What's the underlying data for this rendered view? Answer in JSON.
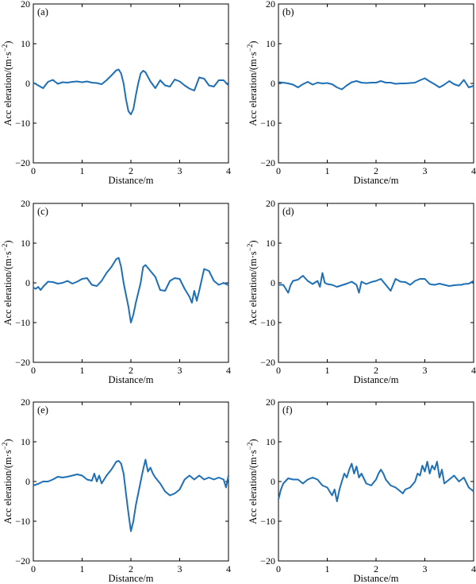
{
  "chart_data": [
    {
      "type": "line",
      "panel_label": "(a)",
      "xlabel": "Distance/m",
      "ylabel": "Acc eleration/(m·s",
      "ylabel_exp": "−2",
      "ylabel_tail": ")",
      "xlim": [
        0,
        4
      ],
      "ylim": [
        -20,
        20
      ],
      "xticks": [
        "0",
        "1",
        "2",
        "3",
        "4"
      ],
      "yticks": [
        "20",
        "10",
        "0",
        "−10",
        "−20"
      ],
      "color": "#1f6fb5",
      "x": [
        0,
        0.1,
        0.2,
        0.3,
        0.4,
        0.5,
        0.6,
        0.7,
        0.8,
        0.9,
        1.0,
        1.1,
        1.2,
        1.3,
        1.4,
        1.5,
        1.6,
        1.7,
        1.75,
        1.8,
        1.85,
        1.9,
        1.95,
        2.0,
        2.05,
        2.1,
        2.15,
        2.2,
        2.25,
        2.3,
        2.4,
        2.5,
        2.6,
        2.7,
        2.8,
        2.9,
        3.0,
        3.1,
        3.2,
        3.3,
        3.4,
        3.5,
        3.6,
        3.7,
        3.8,
        3.9,
        4.0
      ],
      "y": [
        0.2,
        -0.5,
        -1.2,
        0.4,
        0.9,
        -0.1,
        0.3,
        0.2,
        0.4,
        0.5,
        0.3,
        0.5,
        0.2,
        0.1,
        -0.2,
        0.8,
        2.0,
        3.3,
        3.5,
        2.5,
        0,
        -4,
        -7,
        -7.8,
        -6.5,
        -3,
        0,
        2.5,
        3.2,
        2.8,
        0.5,
        -1.2,
        0.8,
        -0.5,
        -0.8,
        1.0,
        0.5,
        -0.5,
        -1.3,
        -1.8,
        1.5,
        1.2,
        -0.5,
        -0.8,
        0.8,
        0.8,
        -0.5
      ]
    },
    {
      "type": "line",
      "panel_label": "(b)",
      "xlabel": "Distance/m",
      "ylabel": "Acc eleration/(m·s",
      "ylabel_exp": "−2",
      "ylabel_tail": ")",
      "xlim": [
        0,
        4
      ],
      "ylim": [
        -20,
        20
      ],
      "xticks": [
        "0",
        "1",
        "2",
        "3",
        "4"
      ],
      "yticks": [
        "20",
        "10",
        "0",
        "−10",
        "−20"
      ],
      "color": "#1f6fb5",
      "x": [
        0,
        0.1,
        0.2,
        0.3,
        0.4,
        0.5,
        0.6,
        0.7,
        0.8,
        0.9,
        1.0,
        1.1,
        1.2,
        1.3,
        1.4,
        1.5,
        1.6,
        1.7,
        1.8,
        1.9,
        2.0,
        2.1,
        2.2,
        2.3,
        2.4,
        2.5,
        2.6,
        2.7,
        2.8,
        2.9,
        3.0,
        3.1,
        3.2,
        3.3,
        3.4,
        3.5,
        3.6,
        3.7,
        3.8,
        3.9,
        4.0
      ],
      "y": [
        0.3,
        0.2,
        0,
        -0.3,
        -1.0,
        -0.2,
        0.4,
        -0.3,
        0.2,
        0,
        0.1,
        -0.2,
        -1.0,
        -1.5,
        -0.5,
        0.3,
        0.6,
        0.2,
        0.1,
        0.2,
        0.2,
        0.6,
        0.2,
        0.2,
        -0.1,
        0,
        0,
        0.1,
        0.2,
        0.8,
        1.3,
        0.5,
        -0.2,
        -1.0,
        -0.3,
        0.6,
        -0.2,
        -0.6,
        0.9,
        -1.0,
        -0.6
      ]
    },
    {
      "type": "line",
      "panel_label": "(c)",
      "xlabel": "Distance/m",
      "ylabel": "Acc eleration/(m·s",
      "ylabel_exp": "−2",
      "ylabel_tail": ")",
      "xlim": [
        0,
        4
      ],
      "ylim": [
        -20,
        20
      ],
      "xticks": [
        "0",
        "1",
        "2",
        "3",
        "4"
      ],
      "yticks": [
        "20",
        "10",
        "0",
        "−10",
        "−20"
      ],
      "color": "#1f6fb5",
      "x": [
        0,
        0.05,
        0.1,
        0.15,
        0.2,
        0.3,
        0.4,
        0.5,
        0.6,
        0.7,
        0.8,
        0.9,
        1.0,
        1.1,
        1.2,
        1.3,
        1.4,
        1.5,
        1.6,
        1.7,
        1.75,
        1.8,
        1.85,
        1.9,
        1.95,
        2.0,
        2.05,
        2.1,
        2.2,
        2.25,
        2.3,
        2.4,
        2.5,
        2.6,
        2.7,
        2.8,
        2.9,
        3.0,
        3.1,
        3.2,
        3.25,
        3.3,
        3.35,
        3.4,
        3.5,
        3.6,
        3.7,
        3.8,
        3.9,
        4.0
      ],
      "y": [
        -1.2,
        -1.5,
        -1.0,
        -1.8,
        -1.0,
        0.3,
        0.2,
        -0.2,
        0,
        0.5,
        -0.2,
        0.3,
        1.0,
        1.2,
        -0.5,
        -0.8,
        0.5,
        2.5,
        4.0,
        6.0,
        6.3,
        4.0,
        0,
        -3,
        -6,
        -10,
        -8,
        -5,
        0,
        4.0,
        4.5,
        3.0,
        1.5,
        -1.8,
        -2.0,
        0.5,
        1.2,
        1.0,
        -1.5,
        -3.5,
        -5.0,
        -2.0,
        -4.5,
        -2.0,
        3.5,
        3.0,
        0.5,
        -0.5,
        0,
        -0.6
      ]
    },
    {
      "type": "line",
      "panel_label": "(d)",
      "xlabel": "Distance/m",
      "ylabel": "Acc eleration/(m·s",
      "ylabel_exp": "−2",
      "ylabel_tail": ")",
      "xlim": [
        0,
        4
      ],
      "ylim": [
        -20,
        20
      ],
      "xticks": [
        "0",
        "1",
        "2",
        "3",
        "4"
      ],
      "yticks": [
        "20",
        "10",
        "0",
        "−10",
        "−20"
      ],
      "color": "#1f6fb5",
      "x": [
        0,
        0.1,
        0.15,
        0.2,
        0.25,
        0.3,
        0.4,
        0.5,
        0.6,
        0.7,
        0.8,
        0.85,
        0.9,
        0.95,
        1.0,
        1.1,
        1.2,
        1.3,
        1.4,
        1.5,
        1.6,
        1.65,
        1.7,
        1.8,
        1.9,
        2.0,
        2.1,
        2.2,
        2.3,
        2.35,
        2.4,
        2.5,
        2.6,
        2.7,
        2.8,
        2.9,
        3.0,
        3.1,
        3.2,
        3.3,
        3.4,
        3.5,
        3.6,
        3.7,
        3.75,
        3.8,
        3.9,
        4.0
      ],
      "y": [
        -0.5,
        -0.5,
        -1.5,
        -2.5,
        -0.5,
        0.5,
        0.8,
        1.8,
        0.5,
        -0.3,
        0.5,
        -1.0,
        2.5,
        0,
        -0.3,
        -0.5,
        -1.0,
        -0.6,
        -0.2,
        0.3,
        -0.5,
        -2.5,
        0.3,
        -0.3,
        0.2,
        0.5,
        1.0,
        -0.5,
        -2.0,
        -0.5,
        1.0,
        0.3,
        0.2,
        -0.5,
        0.5,
        1.0,
        1.0,
        -0.3,
        -0.5,
        -0.2,
        -0.5,
        -0.8,
        -0.6,
        -0.5,
        -0.5,
        -0.3,
        -0.2,
        0.5
      ]
    },
    {
      "type": "line",
      "panel_label": "(e)",
      "xlabel": "Distance/m",
      "ylabel": "Acc eleration/(m·s",
      "ylabel_exp": "−2",
      "ylabel_tail": ")",
      "xlim": [
        0,
        4
      ],
      "ylim": [
        -20,
        20
      ],
      "xticks": [
        "0",
        "1",
        "2",
        "3",
        "4"
      ],
      "yticks": [
        "20",
        "10",
        "0",
        "−10",
        "−20"
      ],
      "color": "#1f6fb5",
      "x": [
        0,
        0.1,
        0.2,
        0.3,
        0.4,
        0.5,
        0.6,
        0.7,
        0.8,
        0.9,
        1.0,
        1.1,
        1.2,
        1.25,
        1.3,
        1.35,
        1.4,
        1.5,
        1.6,
        1.7,
        1.75,
        1.8,
        1.85,
        1.9,
        1.95,
        2.0,
        2.05,
        2.1,
        2.2,
        2.25,
        2.3,
        2.35,
        2.4,
        2.45,
        2.5,
        2.6,
        2.7,
        2.8,
        2.9,
        3.0,
        3.1,
        3.2,
        3.3,
        3.4,
        3.5,
        3.6,
        3.7,
        3.8,
        3.9,
        3.95,
        4.0
      ],
      "y": [
        -1.0,
        -0.6,
        0,
        0,
        0.5,
        1.2,
        1.0,
        1.2,
        1.5,
        1.8,
        1.5,
        0.5,
        0.2,
        2.0,
        0,
        1.5,
        -0.5,
        1.5,
        3.0,
        5.0,
        5.2,
        4.5,
        2.0,
        -3,
        -8,
        -12.5,
        -10,
        -6,
        0,
        3.0,
        5.5,
        2.5,
        3.5,
        2.0,
        1.0,
        -0.5,
        -2.5,
        -3.5,
        -3.0,
        -2.0,
        0.5,
        1.5,
        0.5,
        1.5,
        0.5,
        1.0,
        0.5,
        1.0,
        0.5,
        -1.5,
        1.5
      ]
    },
    {
      "type": "line",
      "panel_label": "(f)",
      "xlabel": "Distance/m",
      "ylabel": "Acc eleration/(m·s",
      "ylabel_exp": "−2",
      "ylabel_tail": ")",
      "xlim": [
        0,
        4
      ],
      "ylim": [
        -20,
        20
      ],
      "xticks": [
        "0",
        "1",
        "2",
        "3",
        "4"
      ],
      "yticks": [
        "20",
        "10",
        "0",
        "−10",
        "−20"
      ],
      "color": "#1f6fb5",
      "x": [
        0,
        0.05,
        0.1,
        0.2,
        0.3,
        0.4,
        0.5,
        0.6,
        0.7,
        0.8,
        0.9,
        1.0,
        1.1,
        1.15,
        1.2,
        1.25,
        1.3,
        1.35,
        1.4,
        1.45,
        1.5,
        1.55,
        1.6,
        1.65,
        1.7,
        1.8,
        1.9,
        2.0,
        2.05,
        2.1,
        2.15,
        2.2,
        2.3,
        2.4,
        2.5,
        2.55,
        2.6,
        2.7,
        2.8,
        2.85,
        2.9,
        2.95,
        3.0,
        3.05,
        3.1,
        3.15,
        3.2,
        3.25,
        3.3,
        3.35,
        3.4,
        3.5,
        3.6,
        3.7,
        3.8,
        3.9,
        4.0
      ],
      "y": [
        -4.5,
        -2,
        -0.5,
        0.8,
        0.5,
        0.5,
        -0.5,
        0.5,
        1.0,
        0.5,
        -1.0,
        -1.5,
        -3.5,
        -2.0,
        -5.0,
        -2.0,
        0,
        2.0,
        1.0,
        3.0,
        4.5,
        2.0,
        3.8,
        1.0,
        2.0,
        -0.5,
        -1.0,
        0.5,
        2.0,
        3.0,
        2.0,
        0.5,
        -1.0,
        -1.5,
        -2.5,
        -3.0,
        -2.0,
        -1.5,
        0,
        2.0,
        1.5,
        4.0,
        2.5,
        5.0,
        2.0,
        4.0,
        3.0,
        5.0,
        1.0,
        3.0,
        -0.5,
        0.5,
        1.5,
        0,
        1.0,
        -1.5,
        -2.5
      ]
    }
  ]
}
